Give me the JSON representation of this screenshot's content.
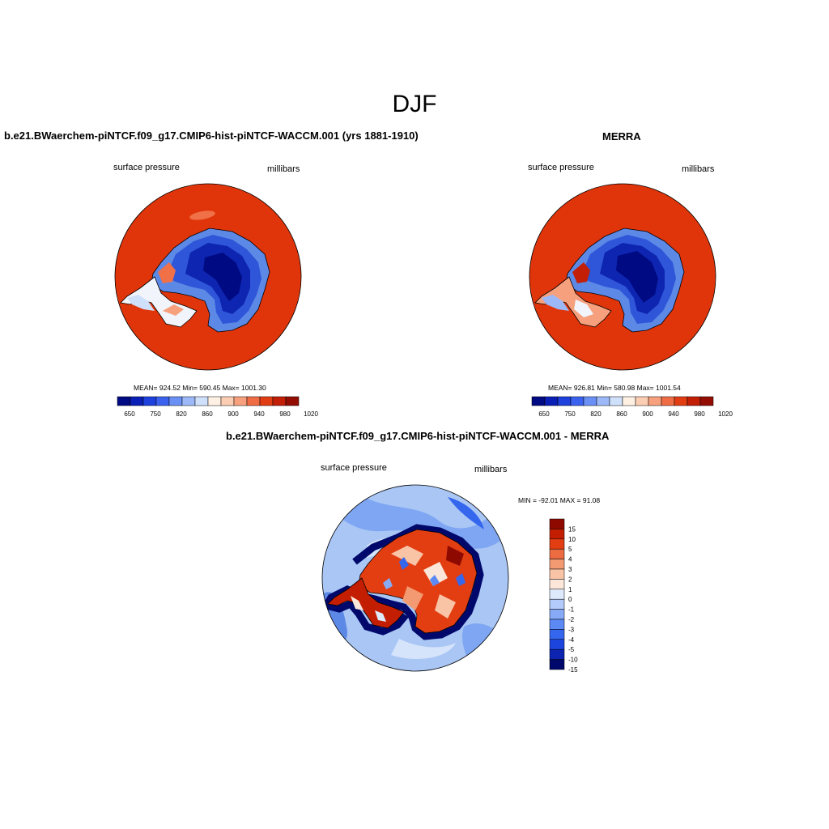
{
  "main_title": "DJF",
  "colors": {
    "ocean_red": "#e0350a",
    "deep_blue": "#000a82",
    "land_line": "#000000",
    "diff_light_blue": "#a9c6f5",
    "diff_mid_blue": "#5c89e6"
  },
  "panels": {
    "model": {
      "title": "b.e21.BWaerchem-piNTCF.f09_g17.CMIP6-hist-piNTCF-WACCM.001 (yrs 1881-1910)",
      "left_label": "surface pressure",
      "right_label": "millibars",
      "stats": "MEAN= 924.52  Min= 590.45  Max= 1001.30"
    },
    "obs": {
      "title": "MERRA",
      "left_label": "surface pressure",
      "right_label": "millibars",
      "stats": "MEAN= 926.81  Min= 580.98  Max= 1001.54"
    },
    "diff": {
      "title": "b.e21.BWaerchem-piNTCF.f09_g17.CMIP6-hist-piNTCF-WACCM.001 - MERRA",
      "left_label": "surface pressure",
      "right_label": "millibars",
      "stats": "MIN = -92.01 MAX =  91.08"
    }
  },
  "colorbar_abs": {
    "colors": [
      "#000a82",
      "#0a1fb5",
      "#1e40dc",
      "#3a62ef",
      "#6a8ff5",
      "#9cb8f8",
      "#cfe0fb",
      "#fff0e4",
      "#fbcdb2",
      "#f6a07e",
      "#ef6c44",
      "#e23d12",
      "#c21f06",
      "#930d03"
    ],
    "labels": [
      "650",
      "750",
      "820",
      "860",
      "900",
      "940",
      "980",
      "1020"
    ]
  },
  "colorbar_diff": {
    "colors": [
      "#00096b",
      "#0c24b0",
      "#1b45dd",
      "#3466ee",
      "#5c89f4",
      "#87aaf7",
      "#b2cbfa",
      "#dfe9fc",
      "#fce6d9",
      "#f9c3a6",
      "#f39a72",
      "#ec6b41",
      "#e23e12",
      "#c41e02",
      "#8e0a00"
    ],
    "labels": [
      "15",
      "10",
      "5",
      "4",
      "3",
      "2",
      "1",
      "0",
      "-1",
      "-2",
      "-3",
      "-4",
      "-5",
      "-10",
      "-15"
    ]
  }
}
